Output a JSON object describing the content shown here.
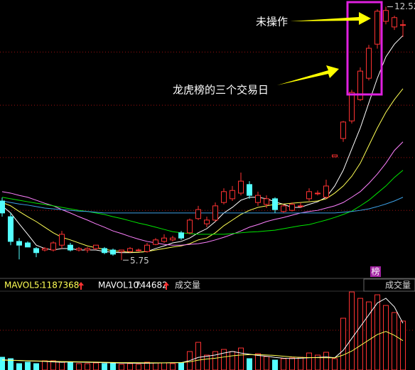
{
  "chart_data": [
    {
      "type": "candlestick",
      "open": [
        7.33,
        6.91,
        6.25,
        6.21,
        6.06,
        6.02,
        6.02,
        6.15,
        6.15,
        6.02,
        6.02,
        6.06,
        6.06,
        6.02,
        5.98,
        5.98,
        6.02,
        5.98,
        6.17,
        6.25,
        6.29,
        6.48,
        6.48,
        6.86,
        6.72,
        6.82,
        7.29,
        7.39,
        7.54,
        7.77,
        7.29,
        7.24,
        7.39,
        7.05,
        7.08,
        7.2,
        7.39,
        7.54,
        7.43,
        8.51,
        9.0,
        9.47,
        10.04,
        10.61,
        11.52,
        12.13,
        11.98,
        12.04
      ],
      "high": [
        7.42,
        7.01,
        6.34,
        6.25,
        6.1,
        6.1,
        6.25,
        6.53,
        6.21,
        6.1,
        6.1,
        6.15,
        6.1,
        6.06,
        6.02,
        6.1,
        6.06,
        6.21,
        6.34,
        6.44,
        6.4,
        6.53,
        6.86,
        7.2,
        6.91,
        7.29,
        7.67,
        7.73,
        8.09,
        7.86,
        7.58,
        7.48,
        7.43,
        7.24,
        7.29,
        7.29,
        7.67,
        7.61,
        7.9,
        8.56,
        9.47,
        10.3,
        10.9,
        11.5,
        12.45,
        12.52,
        12.28,
        12.17
      ],
      "low": [
        6.91,
        6.15,
        5.77,
        6.1,
        5.83,
        5.98,
        5.98,
        6.06,
        5.98,
        5.98,
        5.95,
        6.02,
        5.91,
        5.87,
        5.75,
        5.95,
        5.98,
        5.95,
        6.15,
        6.21,
        6.25,
        6.29,
        6.44,
        6.82,
        6.63,
        6.78,
        7.24,
        7.33,
        7.48,
        7.39,
        7.2,
        7.14,
        7.01,
        7.01,
        7.05,
        7.14,
        7.33,
        7.48,
        7.39,
        8.51,
        8.91,
        9.4,
        10.0,
        10.55,
        11.4,
        12.05,
        11.9,
        11.71
      ],
      "close": [
        7.01,
        6.25,
        6.15,
        6.1,
        5.95,
        6.06,
        6.21,
        6.44,
        6.02,
        6.06,
        6.06,
        6.15,
        5.95,
        5.91,
        6.02,
        6.06,
        6.02,
        6.15,
        6.29,
        6.34,
        6.34,
        6.34,
        6.82,
        7.1,
        6.82,
        7.2,
        7.58,
        7.61,
        7.86,
        7.48,
        7.48,
        7.39,
        7.1,
        7.2,
        7.24,
        7.2,
        7.58,
        7.54,
        7.73,
        8.56,
        9.44,
        10.23,
        10.8,
        11.41,
        12.4,
        12.42,
        12.23,
        12.04
      ],
      "up_color": "#ff3232",
      "down_color": "#54ffff",
      "ma_lines": [
        {
          "color": "#ffffff",
          "values": [
            7.2,
            7.01,
            6.72,
            6.44,
            6.15,
            6.06,
            6.02,
            6.06,
            6.06,
            6.02,
            6.02,
            6.02,
            5.98,
            5.96,
            5.95,
            5.95,
            5.96,
            5.98,
            6.06,
            6.13,
            6.21,
            6.25,
            6.34,
            6.48,
            6.59,
            6.78,
            7.01,
            7.16,
            7.35,
            7.43,
            7.43,
            7.39,
            7.31,
            7.24,
            7.16,
            7.16,
            7.24,
            7.31,
            7.43,
            7.73,
            8.15,
            8.72,
            9.28,
            9.95,
            10.61,
            11.18,
            11.52,
            11.75
          ]
        },
        {
          "color": "#ffff54",
          "values": [
            7.29,
            7.2,
            7.05,
            6.91,
            6.78,
            6.63,
            6.48,
            6.36,
            6.29,
            6.21,
            6.13,
            6.08,
            6.04,
            6.0,
            5.98,
            5.96,
            5.96,
            5.98,
            6.02,
            6.06,
            6.1,
            6.13,
            6.19,
            6.29,
            6.34,
            6.48,
            6.67,
            6.82,
            6.97,
            7.08,
            7.16,
            7.2,
            7.24,
            7.25,
            7.27,
            7.29,
            7.31,
            7.33,
            7.39,
            7.54,
            7.73,
            7.99,
            8.34,
            8.81,
            9.28,
            9.7,
            10.04,
            10.33
          ]
        },
        {
          "color": "#ff80ff",
          "values": [
            7.58,
            7.54,
            7.48,
            7.43,
            7.35,
            7.27,
            7.2,
            7.1,
            7.01,
            6.91,
            6.82,
            6.72,
            6.63,
            6.53,
            6.46,
            6.38,
            6.31,
            6.25,
            6.21,
            6.17,
            6.15,
            6.15,
            6.17,
            6.19,
            6.23,
            6.29,
            6.36,
            6.44,
            6.53,
            6.63,
            6.7,
            6.78,
            6.84,
            6.89,
            6.95,
            7.01,
            7.05,
            7.08,
            7.14,
            7.2,
            7.29,
            7.43,
            7.58,
            7.8,
            8.05,
            8.34,
            8.68,
            8.91
          ]
        },
        {
          "color": "#00e600",
          "values": [
            7.43,
            7.39,
            7.35,
            7.31,
            7.27,
            7.24,
            7.2,
            7.16,
            7.12,
            7.08,
            7.05,
            7.01,
            6.97,
            6.91,
            6.86,
            6.8,
            6.74,
            6.69,
            6.63,
            6.57,
            6.51,
            6.48,
            6.46,
            6.44,
            6.44,
            6.44,
            6.44,
            6.46,
            6.48,
            6.5,
            6.51,
            6.53,
            6.55,
            6.59,
            6.63,
            6.67,
            6.7,
            6.76,
            6.82,
            6.89,
            6.97,
            7.06,
            7.2,
            7.35,
            7.54,
            7.73,
            7.96,
            8.15
          ]
        },
        {
          "color": "#3ca0e6",
          "values": [
            7.33,
            7.29,
            7.25,
            7.22,
            7.18,
            7.14,
            7.12,
            7.1,
            7.08,
            7.06,
            7.05,
            7.03,
            7.01,
            7.01,
            7.01,
            7.01,
            7.01,
            7.01,
            7.01,
            7.01,
            7.01,
            7.01,
            7.01,
            7.01,
            7.01,
            7.01,
            7.01,
            7.01,
            7.01,
            7.01,
            7.01,
            7.01,
            7.01,
            7.01,
            7.01,
            7.01,
            7.01,
            7.01,
            7.01,
            7.01,
            7.03,
            7.05,
            7.08,
            7.12,
            7.18,
            7.25,
            7.33,
            7.43
          ]
        }
      ],
      "ylim": [
        5.3,
        12.7
      ],
      "grid_levels": [
        11.31,
        9.89,
        8.49,
        7.08
      ],
      "grid_color": "#a01010",
      "annotations": [
        "未操作",
        "龙虎榜的三个交易日"
      ],
      "badge": "榜"
    },
    {
      "type": "bar",
      "title": "成交量",
      "tab": "成交量",
      "values": [
        324000,
        288000,
        162000,
        198000,
        162000,
        234000,
        234000,
        198000,
        198000,
        162000,
        162000,
        180000,
        162000,
        162000,
        144000,
        162000,
        144000,
        198000,
        180000,
        180000,
        162000,
        180000,
        468000,
        702000,
        378000,
        468000,
        522000,
        468000,
        558000,
        288000,
        414000,
        342000,
        252000,
        288000,
        306000,
        324000,
        432000,
        378000,
        450000,
        288000,
        1314000,
        1980000,
        1818000,
        1728000,
        1908000,
        1638000,
        1458000,
        1242000
      ],
      "series": [
        {
          "name": "MAVOL5:",
          "color": "#ffffff",
          "values": [
            260000,
            250000,
            240000,
            230000,
            226000,
            219000,
            205000,
            197000,
            205000,
            201000,
            196000,
            192000,
            185000,
            180000,
            176000,
            174000,
            172000,
            172000,
            176000,
            180000,
            184000,
            186000,
            240000,
            320000,
            350000,
            380000,
            430000,
            470000,
            430000,
            400000,
            370000,
            350000,
            320000,
            300000,
            290000,
            300000,
            310000,
            320000,
            330000,
            310000,
            500000,
            800000,
            1100000,
            1400000,
            1700000,
            1820000,
            1600000,
            1187368
          ]
        },
        {
          "name": "MAVOL10:",
          "color": "#ffff54",
          "values": [
            250000,
            245000,
            240000,
            235000,
            230000,
            225000,
            220000,
            215000,
            212000,
            208000,
            204000,
            200000,
            196000,
            192000,
            188000,
            186000,
            184000,
            182000,
            182000,
            183000,
            185000,
            190000,
            210000,
            250000,
            280000,
            300000,
            330000,
            360000,
            380000,
            390000,
            390000,
            380000,
            370000,
            350000,
            330000,
            320000,
            315000,
            312000,
            310000,
            308000,
            380000,
            480000,
            620000,
            760000,
            900000,
            980000,
            880000,
            744682
          ]
        }
      ],
      "ylim": [
        0,
        2000000
      ],
      "grid_levels": [
        1008000
      ]
    }
  ]
}
